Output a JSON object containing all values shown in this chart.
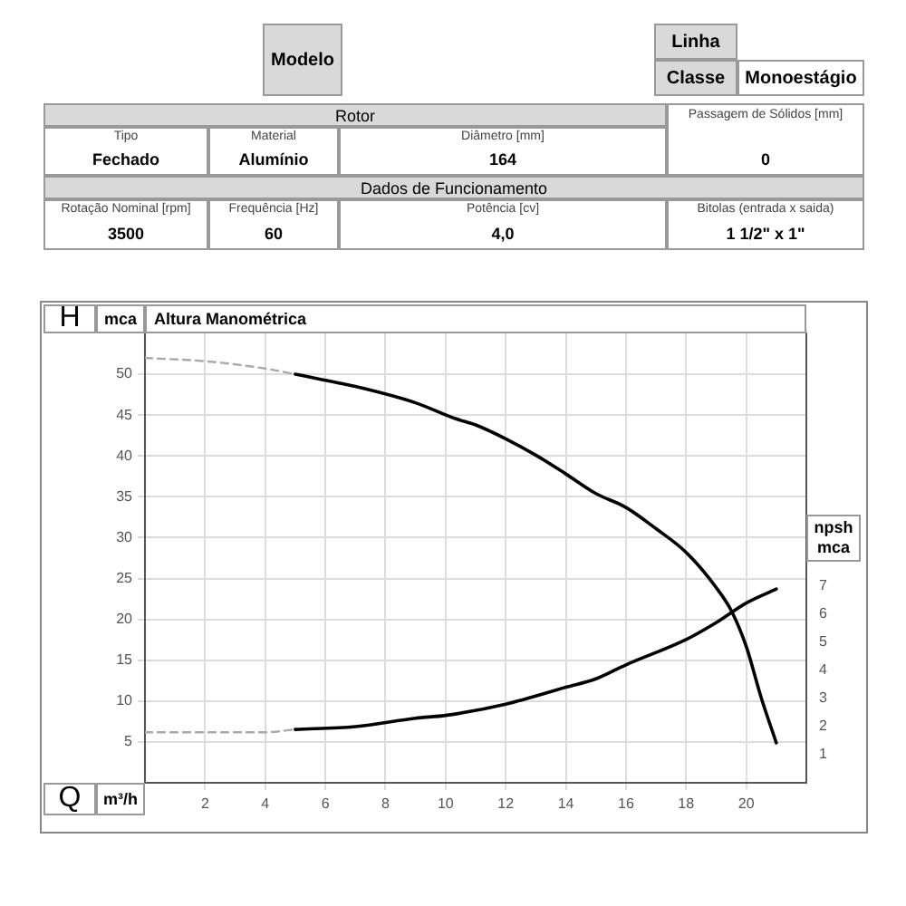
{
  "chart_data": {
    "type": "line",
    "title": "Altura Manométrica",
    "xlabel": "m³/h",
    "ylabel": "mca",
    "y2label": "npsh mca",
    "annotations": [
      "Modelo",
      "Linha",
      "Classe",
      "Monoestágio",
      "Rotor",
      "Passagem de Sólidos [mm]",
      "Tipo",
      "Material",
      "Diâmetro [mm]",
      "Fechado",
      "Alumínio",
      "164",
      "0",
      "Dados de Funcionamento",
      "Rotação Nominal [rpm]",
      "Frequência [Hz]",
      "Potência [cv]",
      "Bitolas (entrada x saida)",
      "3500",
      "60",
      "4,0",
      "1 1/2\" x 1\"",
      "H",
      "Q"
    ],
    "xlim": [
      0,
      22
    ],
    "xticks": [
      2,
      4,
      6,
      8,
      10,
      12,
      14,
      16,
      18,
      20
    ],
    "ylim": [
      0,
      55
    ],
    "yticks": [
      5,
      10,
      15,
      20,
      25,
      30,
      35,
      40,
      45,
      50
    ],
    "y2lim": [
      0,
      16
    ],
    "y2ticks": [
      1,
      2,
      3,
      4,
      5,
      6,
      7
    ],
    "grid": true,
    "legend": false,
    "marker": "none",
    "series": [
      {
        "color": "#aaaaaa",
        "line_style": "dashed",
        "x": [
          0,
          2,
          4,
          5
        ],
        "values": [
          52.0,
          51.6,
          50.7,
          50.0
        ]
      },
      {
        "color": "#000000",
        "line_style": "solid",
        "x": [
          5,
          7,
          9,
          10.3,
          11,
          12,
          13,
          14,
          15,
          16,
          17,
          18,
          19,
          19.5,
          20,
          20.5,
          21
        ],
        "values": [
          50.0,
          48.5,
          46.5,
          44.6,
          43.8,
          42.1,
          40.1,
          37.8,
          35.4,
          33.7,
          31.1,
          28.2,
          23.9,
          21.1,
          16.7,
          10.4,
          4.9
        ]
      },
      {
        "color": "#aaaaaa",
        "line_style": "dashed",
        "axis": "y2",
        "x": [
          0,
          2,
          4,
          5
        ],
        "values": [
          1.8,
          1.8,
          1.8,
          1.9
        ]
      },
      {
        "color": "#000000",
        "line_style": "solid",
        "axis": "y2",
        "x": [
          5,
          7,
          9,
          10,
          12,
          14,
          15,
          16,
          18,
          19,
          20,
          21
        ],
        "values": [
          1.9,
          2.0,
          2.3,
          2.4,
          2.8,
          3.4,
          3.7,
          4.2,
          5.1,
          5.7,
          6.4,
          6.9
        ]
      }
    ]
  }
}
